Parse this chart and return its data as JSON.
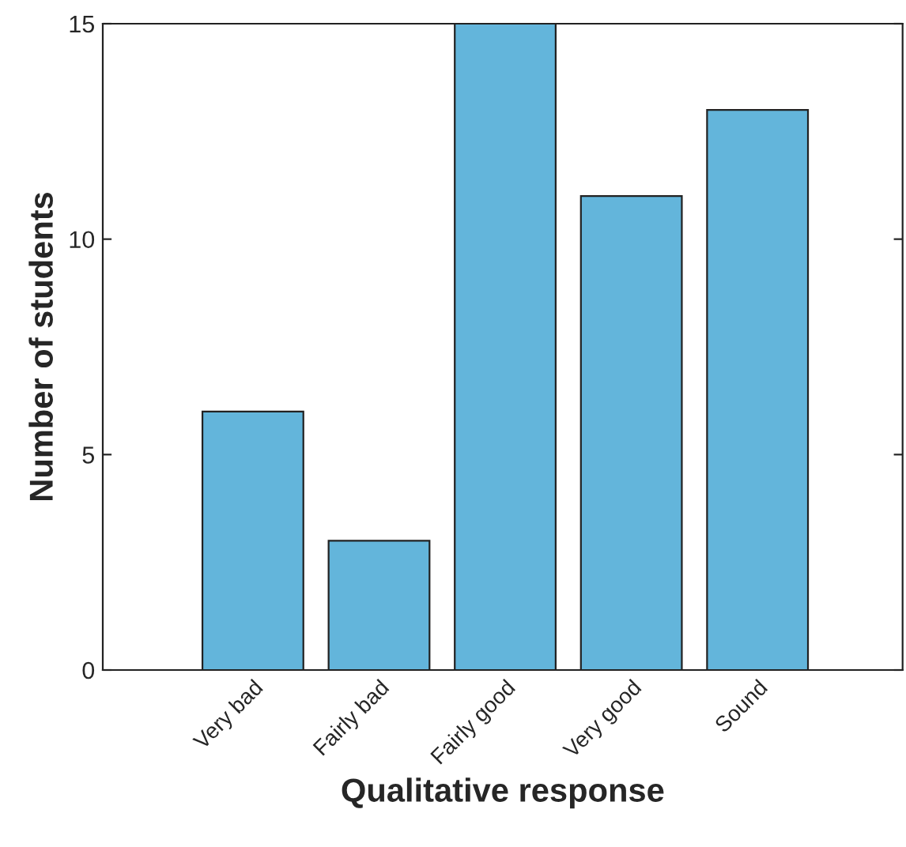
{
  "chart_data": {
    "type": "bar",
    "xlabel": "Qualitative response",
    "ylabel": "Number of students",
    "categories": [
      "Very bad",
      "Fairly bad",
      "Fairly good",
      "Very good",
      "Sound"
    ],
    "values": [
      6,
      3,
      15,
      11,
      13
    ],
    "color": "#63b5db",
    "ylim": [
      0,
      15
    ],
    "yticks": [
      0,
      5,
      10,
      15
    ],
    "grid": false,
    "legend": false
  }
}
